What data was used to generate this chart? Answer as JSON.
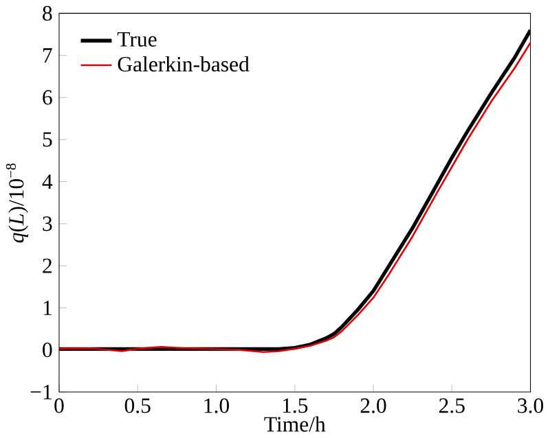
{
  "chart_data": {
    "type": "line",
    "xlabel": "Time/h",
    "ylabel": "*q*(*L*)/10$^{−8}$",
    "xlim": [
      0,
      3
    ],
    "ylim": [
      -1,
      8
    ],
    "xticks": [
      0,
      0.5,
      {
        "value": 1,
        "label": "1.0"
      },
      1.5,
      {
        "value": 2,
        "label": "2.0"
      },
      2.5,
      {
        "value": 3,
        "label": "3.0"
      }
    ],
    "yticks": [
      {
        "value": -1,
        "label": "−1"
      },
      0,
      1,
      2,
      3,
      4,
      5,
      6,
      7,
      8
    ],
    "legend": "top left",
    "grid": false,
    "series": [
      {
        "name": "True",
        "color": "#000000",
        "x": [
          0,
          0.5,
          1.0,
          1.4,
          1.5,
          1.6,
          1.7,
          1.75,
          1.8,
          1.9,
          2.0,
          2.1,
          2.25,
          2.4,
          2.5,
          2.6,
          2.75,
          2.9,
          3.0
        ],
        "values": [
          0.02,
          0.02,
          0.02,
          0.02,
          0.05,
          0.13,
          0.28,
          0.38,
          0.55,
          0.95,
          1.4,
          2.0,
          2.9,
          3.9,
          4.57,
          5.2,
          6.1,
          6.95,
          7.6
        ]
      },
      {
        "name": "Galerkin-based",
        "color": "#e00000",
        "x": [
          0,
          0.2,
          0.4,
          0.5,
          0.65,
          0.8,
          1.0,
          1.15,
          1.3,
          1.4,
          1.5,
          1.6,
          1.7,
          1.75,
          1.8,
          1.9,
          2.0,
          2.1,
          2.25,
          2.4,
          2.5,
          2.6,
          2.75,
          2.9,
          3.0
        ],
        "values": [
          0.03,
          0.04,
          -0.03,
          0.03,
          0.07,
          0.04,
          0.02,
          0.0,
          -0.05,
          -0.03,
          0.03,
          0.1,
          0.22,
          0.3,
          0.45,
          0.82,
          1.24,
          1.8,
          2.7,
          3.7,
          4.35,
          5.0,
          5.9,
          6.7,
          7.3
        ]
      }
    ]
  }
}
